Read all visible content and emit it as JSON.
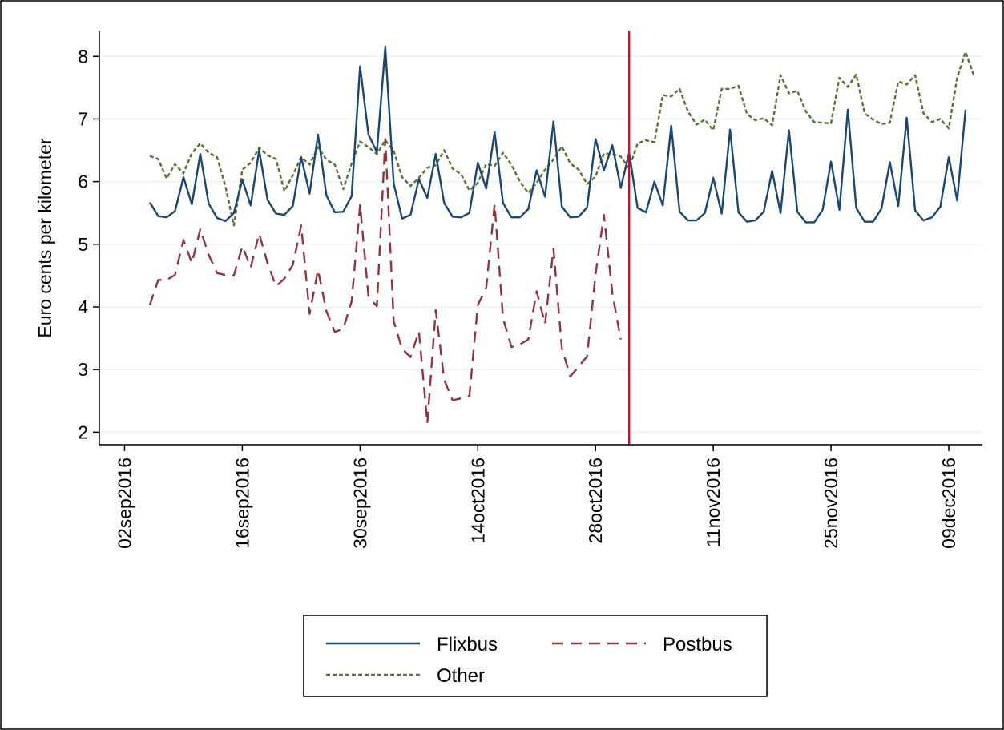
{
  "chart_data": {
    "type": "line",
    "title": "",
    "xlabel": "",
    "ylabel": "Euro cents per kilometer",
    "ylim": [
      1.8,
      8.4
    ],
    "xlim": [
      "2016-08-30",
      "2016-12-13"
    ],
    "yticks": [
      2,
      3,
      4,
      5,
      6,
      7,
      8
    ],
    "xticks": [
      "02sep2016",
      "16sep2016",
      "30sep2016",
      "14oct2016",
      "28oct2016",
      "11nov2016",
      "25nov2016",
      "09dec2016"
    ],
    "grid": true,
    "vline": {
      "x": "2016-11-01",
      "color": "#c8102e"
    },
    "legend": {
      "placement": "bottom"
    },
    "x_start": "2016-09-05",
    "series": [
      {
        "name": "Flixbus",
        "color": "#1a476f",
        "dash": "solid",
        "values": [
          5.67,
          5.45,
          5.43,
          5.53,
          6.07,
          5.64,
          6.44,
          5.65,
          5.42,
          5.37,
          5.5,
          6.03,
          5.62,
          6.5,
          5.71,
          5.49,
          5.47,
          5.61,
          6.39,
          5.81,
          6.75,
          5.78,
          5.51,
          5.52,
          5.77,
          7.84,
          6.75,
          6.47,
          8.15,
          5.97,
          5.41,
          5.47,
          6.04,
          5.74,
          6.44,
          5.66,
          5.44,
          5.43,
          5.5,
          6.3,
          5.89,
          6.79,
          5.66,
          5.43,
          5.43,
          5.56,
          6.18,
          5.76,
          6.96,
          5.6,
          5.43,
          5.44,
          5.59,
          6.68,
          6.18,
          6.58,
          5.9,
          6.46,
          5.58,
          5.51,
          6.0,
          5.62,
          6.89,
          5.52,
          5.38,
          5.38,
          5.5,
          6.06,
          5.49,
          6.83,
          5.51,
          5.36,
          5.38,
          5.52,
          6.17,
          5.5,
          6.82,
          5.52,
          5.35,
          5.35,
          5.55,
          6.32,
          5.55,
          7.15,
          5.58,
          5.36,
          5.36,
          5.57,
          6.31,
          5.61,
          7.02,
          5.54,
          5.38,
          5.43,
          5.6,
          6.39,
          5.7,
          7.15
        ]
      },
      {
        "name": "Postbus",
        "color": "#90353b",
        "dash": "long",
        "values": [
          4.03,
          4.43,
          4.43,
          4.51,
          5.07,
          4.7,
          5.24,
          4.83,
          4.54,
          4.51,
          4.5,
          4.97,
          4.63,
          5.17,
          4.7,
          4.33,
          4.45,
          4.67,
          5.3,
          3.89,
          4.59,
          3.93,
          3.6,
          3.65,
          4.09,
          5.63,
          4.17,
          4.01,
          6.68,
          3.77,
          3.33,
          3.2,
          3.61,
          2.14,
          3.95,
          2.84,
          2.51,
          2.54,
          2.58,
          4.03,
          4.3,
          5.64,
          3.82,
          3.36,
          3.4,
          3.48,
          4.25,
          3.73,
          4.93,
          3.34,
          2.89,
          3.05,
          3.21,
          4.52,
          5.47,
          4.22,
          3.48
        ]
      },
      {
        "name": "Other",
        "color": "#55752f",
        "dash": "short",
        "values": [
          6.41,
          6.36,
          6.05,
          6.28,
          6.13,
          6.45,
          6.61,
          6.46,
          6.39,
          5.92,
          5.3,
          6.19,
          6.3,
          6.54,
          6.42,
          6.36,
          5.85,
          6.1,
          6.39,
          6.27,
          6.55,
          6.35,
          6.27,
          5.88,
          6.29,
          6.64,
          6.55,
          6.44,
          6.66,
          6.49,
          6.07,
          5.93,
          6.06,
          6.22,
          6.26,
          6.5,
          6.21,
          6.12,
          5.86,
          5.98,
          6.28,
          6.25,
          6.46,
          6.27,
          6.0,
          5.82,
          5.98,
          6.19,
          6.35,
          6.56,
          6.29,
          6.19,
          5.96,
          6.08,
          6.45,
          6.44,
          6.4,
          6.21,
          6.61,
          6.66,
          6.63,
          7.38,
          7.36,
          7.48,
          7.12,
          6.91,
          6.99,
          6.82,
          7.48,
          7.48,
          7.53,
          7.08,
          6.98,
          7.01,
          6.9,
          7.7,
          7.41,
          7.45,
          7.12,
          6.95,
          6.94,
          6.93,
          7.66,
          7.51,
          7.71,
          7.09,
          6.99,
          6.92,
          6.94,
          7.6,
          7.55,
          7.7,
          7.09,
          6.95,
          7.0,
          6.85,
          7.66,
          8.07,
          7.69
        ]
      }
    ]
  }
}
